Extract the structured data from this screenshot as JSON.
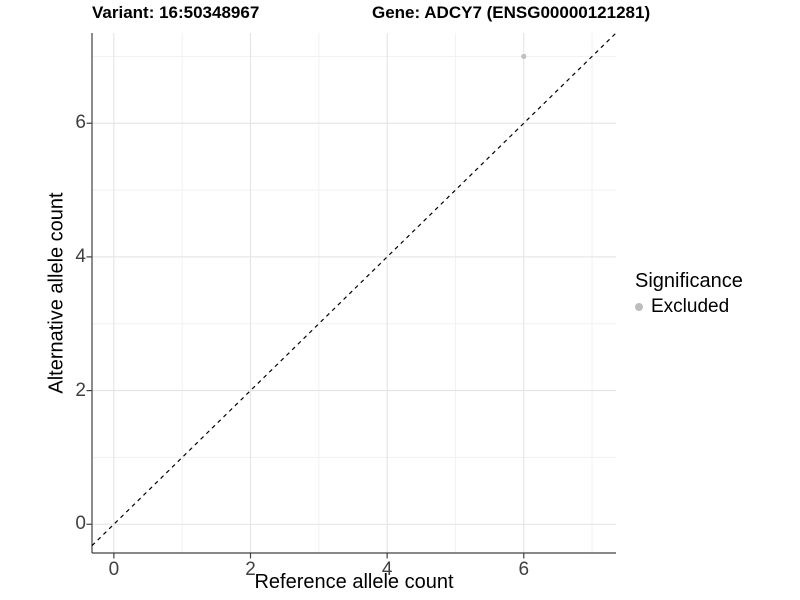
{
  "chart_data": {
    "type": "scatter",
    "title_left": "Variant: 16:50348967",
    "title_right": "Gene: ADCY7 (ENSG00000121281)",
    "xlabel": "Reference allele count",
    "ylabel": "Alternative allele count",
    "xlim": [
      -0.32,
      7.35
    ],
    "ylim": [
      -0.43,
      7.35
    ],
    "x_major_ticks": [
      0,
      2,
      4,
      6
    ],
    "y_major_ticks": [
      0,
      2,
      4,
      6
    ],
    "x_minor_ticks": [
      1,
      3,
      5,
      7
    ],
    "y_minor_ticks": [
      1,
      3,
      5,
      7
    ],
    "grid": true,
    "reference_line": {
      "slope": 1,
      "intercept": 0,
      "style": "dashed"
    },
    "series": [
      {
        "name": "Excluded",
        "points": [
          {
            "x": 6,
            "y": 7
          }
        ]
      }
    ],
    "legend": {
      "title": "Significance",
      "position": "right",
      "items": [
        {
          "label": "Excluded",
          "color": "#bdbdbd"
        }
      ]
    },
    "colors": {
      "point": "#c0c0c0",
      "grid_major": "#e4e4e4",
      "grid_minor": "#f1f1f1",
      "axis_line": "#404040",
      "tick": "#404040",
      "tick_label": "#404040",
      "text": "#000000",
      "reference_line": "#000000",
      "background": "#ffffff"
    }
  }
}
